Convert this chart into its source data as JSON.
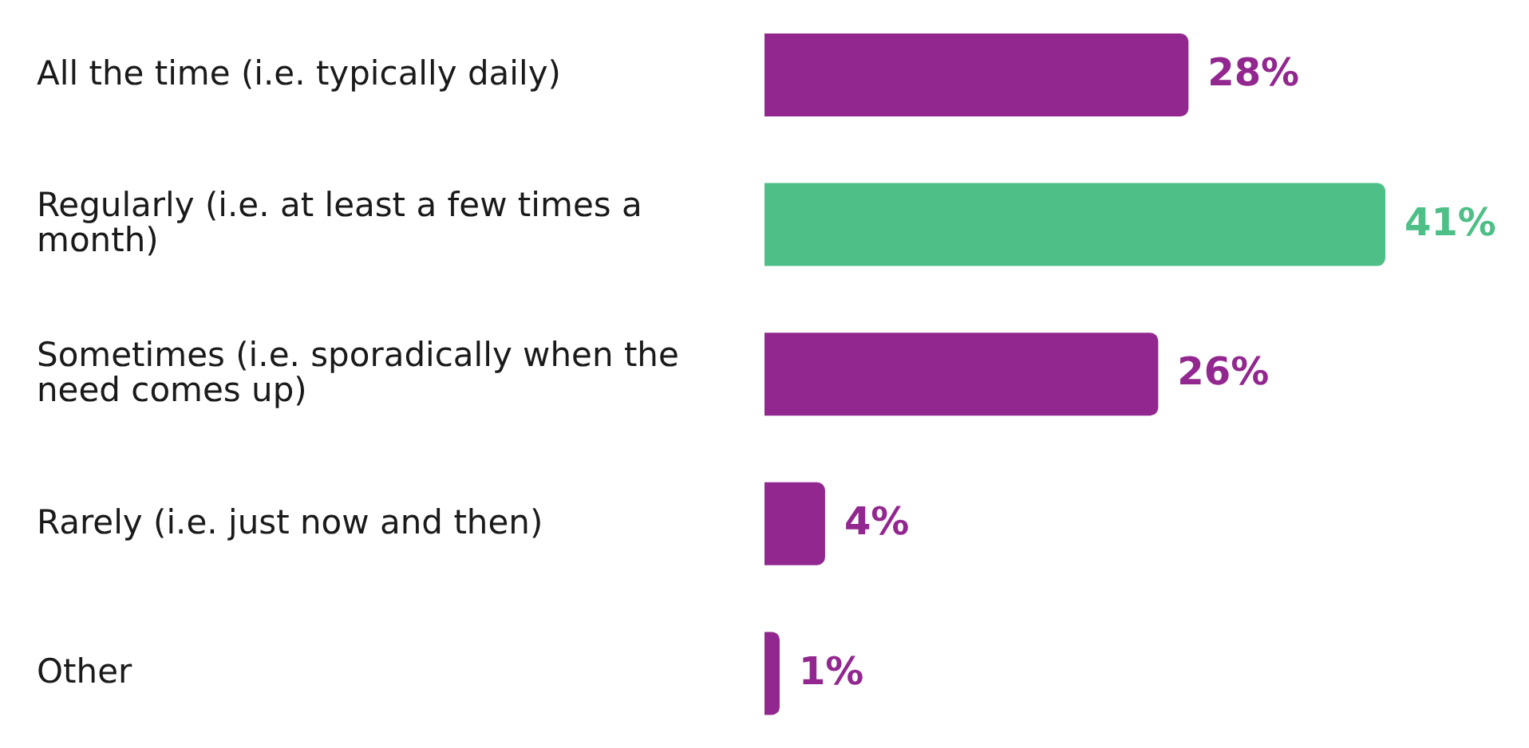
{
  "chart_data": {
    "type": "bar",
    "orientation": "horizontal",
    "categories": [
      "All the time (i.e. typically daily)",
      "Regularly (i.e. at least a few times a month)",
      "Sometimes (i.e. sporadically when the need comes up)",
      "Rarely (i.e. just now and then)",
      "Other"
    ],
    "values": [
      28,
      41,
      26,
      4,
      1
    ],
    "colors": [
      "#92278f",
      "#4dbf87",
      "#92278f",
      "#92278f",
      "#92278f"
    ],
    "value_labels": [
      "28%",
      "41%",
      "26%",
      "4%",
      "1%"
    ]
  }
}
